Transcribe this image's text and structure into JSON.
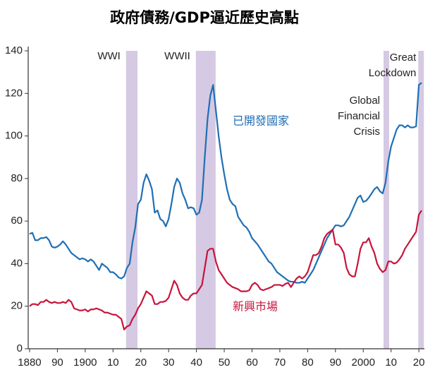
{
  "chart_data": {
    "type": "line",
    "title": "政府債務/GDP逼近歷史高點",
    "x": [
      1880,
      1881,
      1882,
      1883,
      1884,
      1885,
      1886,
      1887,
      1888,
      1889,
      1890,
      1891,
      1892,
      1893,
      1894,
      1895,
      1896,
      1897,
      1898,
      1899,
      1900,
      1901,
      1902,
      1903,
      1904,
      1905,
      1906,
      1907,
      1908,
      1909,
      1910,
      1911,
      1912,
      1913,
      1914,
      1915,
      1916,
      1917,
      1918,
      1919,
      1920,
      1921,
      1922,
      1923,
      1924,
      1925,
      1926,
      1927,
      1928,
      1929,
      1930,
      1931,
      1932,
      1933,
      1934,
      1935,
      1936,
      1937,
      1938,
      1939,
      1940,
      1941,
      1942,
      1943,
      1944,
      1945,
      1946,
      1947,
      1948,
      1949,
      1950,
      1951,
      1952,
      1953,
      1954,
      1955,
      1956,
      1957,
      1958,
      1959,
      1960,
      1961,
      1962,
      1963,
      1964,
      1965,
      1966,
      1967,
      1968,
      1969,
      1970,
      1971,
      1972,
      1973,
      1974,
      1975,
      1976,
      1977,
      1978,
      1979,
      1980,
      1981,
      1982,
      1983,
      1984,
      1985,
      1986,
      1987,
      1988,
      1989,
      1990,
      1991,
      1992,
      1993,
      1994,
      1995,
      1996,
      1997,
      1998,
      1999,
      2000,
      2001,
      2002,
      2003,
      2004,
      2005,
      2006,
      2007,
      2008,
      2009,
      2010,
      2011,
      2012,
      2013,
      2014,
      2015,
      2016,
      2017,
      2018,
      2019,
      2020,
      2021
    ],
    "series": [
      {
        "name": "已開發國家",
        "color": "#1f6fb5",
        "values": [
          54,
          54.5,
          51,
          51,
          52,
          52,
          52.5,
          51,
          48,
          47.5,
          48,
          49,
          50.5,
          49,
          47,
          45,
          44,
          43,
          42,
          42.5,
          42,
          41,
          42,
          41,
          39,
          37,
          40,
          39,
          38,
          36,
          36,
          35,
          33.5,
          33,
          34,
          38,
          40,
          50,
          57,
          68,
          70,
          78,
          82,
          79,
          75,
          64,
          65,
          61,
          60,
          57.5,
          61,
          68,
          76,
          80,
          78,
          73,
          70,
          66,
          66.5,
          66,
          63,
          64,
          70,
          90,
          108,
          119,
          124,
          112,
          100,
          90,
          82,
          75,
          70,
          68,
          67,
          62,
          60,
          58,
          57,
          55,
          52,
          50.5,
          49,
          47,
          45,
          43,
          41,
          40,
          38,
          36,
          35,
          34,
          33,
          32,
          31.5,
          31.5,
          31,
          31,
          31.5,
          31,
          33,
          35,
          37,
          40,
          43,
          46,
          49,
          52,
          54,
          56,
          58,
          58,
          57.5,
          58,
          60,
          62,
          65,
          68,
          71,
          72,
          69,
          69.5,
          71,
          73,
          75,
          76,
          74,
          73,
          78,
          88,
          95,
          99,
          103,
          105,
          105,
          104,
          105,
          104,
          104,
          104.5,
          124,
          125
        ]
      },
      {
        "name": "新興市場",
        "color": "#c8143c",
        "values": [
          20,
          21,
          21,
          20.5,
          22,
          22,
          23,
          22,
          21.5,
          22,
          21.5,
          21.5,
          22,
          21.5,
          23,
          22,
          19,
          18.5,
          18,
          18,
          18.5,
          17.5,
          18.5,
          18.5,
          19,
          18.5,
          18,
          17,
          17,
          16.5,
          16,
          16,
          15,
          14,
          9,
          10.5,
          11,
          14,
          16,
          19,
          21,
          24,
          27,
          26,
          25,
          21,
          21,
          22,
          22,
          22.5,
          24,
          28,
          32,
          30,
          26,
          24,
          23,
          23,
          25,
          26,
          26,
          28,
          30,
          38,
          46,
          47,
          47,
          41,
          37,
          35,
          33,
          31,
          30,
          29,
          28.5,
          28,
          27,
          27,
          27,
          27.5,
          30,
          31,
          30,
          28,
          27.5,
          28,
          28.5,
          29,
          30,
          30,
          30,
          29.5,
          30.5,
          31,
          29,
          31,
          33,
          34,
          33,
          34,
          36,
          40,
          44,
          44,
          45,
          48,
          52,
          54,
          55,
          56,
          49,
          49,
          47.5,
          45,
          38,
          35,
          34,
          34,
          40,
          47,
          50,
          50,
          52,
          48,
          45,
          40,
          37.5,
          36,
          37,
          41,
          41,
          40,
          40.5,
          42,
          44,
          47,
          49,
          51,
          53,
          55,
          63,
          65
        ]
      }
    ],
    "shaded_periods": [
      {
        "start": 1914.7,
        "end": 1918.8,
        "label_lines": [
          "WWI"
        ]
      },
      {
        "start": 1939.8,
        "end": 1946.9,
        "label_lines": [
          "WWII"
        ]
      },
      {
        "start": 2007.3,
        "end": 2009.3,
        "label_lines": [
          "Global",
          "Financial",
          "Crisis"
        ]
      },
      {
        "start": 2019.8,
        "end": 2021.8,
        "label_lines": [
          "Great",
          "Lockdown"
        ]
      }
    ],
    "shade_color": "#d5c9e3",
    "xlim": [
      1879.5,
      2022
    ],
    "xticks": [
      {
        "value": 1880,
        "label": "1880"
      },
      {
        "value": 1890,
        "label": "90"
      },
      {
        "value": 1900,
        "label": "1900"
      },
      {
        "value": 1910,
        "label": "10"
      },
      {
        "value": 1920,
        "label": "20"
      },
      {
        "value": 1930,
        "label": "30"
      },
      {
        "value": 1940,
        "label": "40"
      },
      {
        "value": 1950,
        "label": "50"
      },
      {
        "value": 1960,
        "label": "60"
      },
      {
        "value": 1970,
        "label": "70"
      },
      {
        "value": 1980,
        "label": "80"
      },
      {
        "value": 1990,
        "label": "90"
      },
      {
        "value": 2000,
        "label": "2000"
      },
      {
        "value": 2010,
        "label": "10"
      },
      {
        "value": 2020,
        "label": "20"
      }
    ],
    "ylim": [
      0,
      140
    ],
    "yticks": [
      0,
      20,
      40,
      60,
      80,
      100,
      120,
      140
    ],
    "grid": false
  }
}
